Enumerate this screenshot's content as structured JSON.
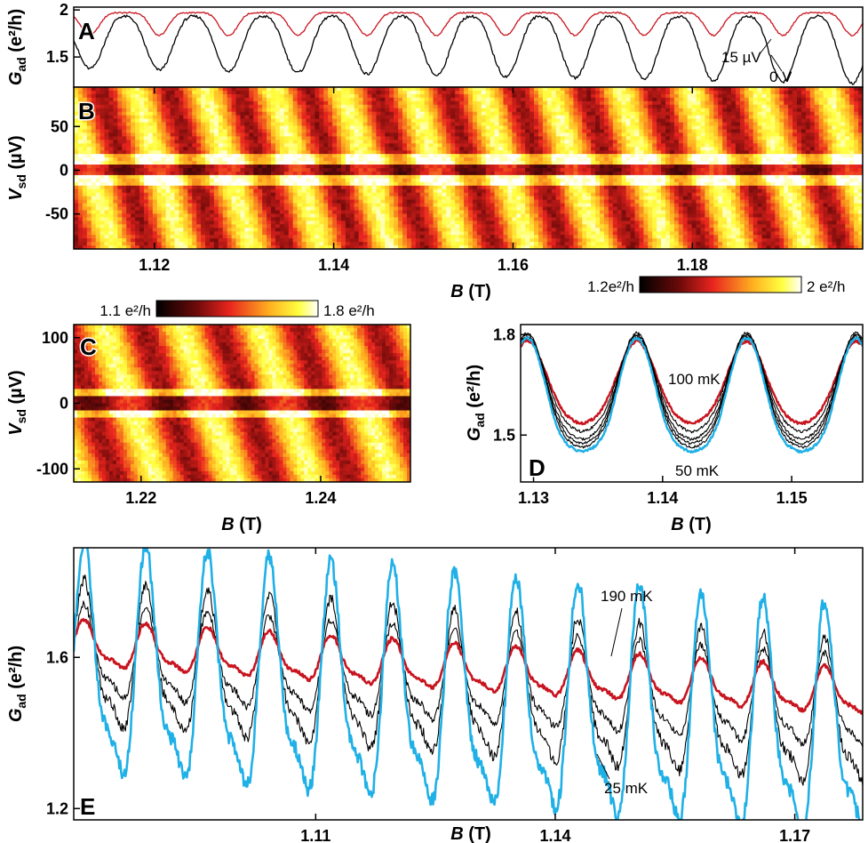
{
  "chart_data": [
    {
      "panel": "A",
      "type": "line",
      "xlim": [
        1.111,
        1.199
      ],
      "ylim": [
        1.18,
        2.03
      ],
      "ylabel": {
        "base": "G",
        "sub": "ad",
        "unit": "(e²/h)"
      },
      "yticks": [
        "1.5",
        "2"
      ],
      "ytick_values": [
        1.5,
        2.0
      ],
      "period": 0.00773,
      "phase": 1.1128,
      "series": [
        {
          "name": "15 µV",
          "color": "#c8141e",
          "low": 1.73,
          "high": 1.97
        },
        {
          "name": "0 V",
          "color": "#000000",
          "low_start": 1.38,
          "low_end": 1.22,
          "high": 1.93
        }
      ],
      "annotations": [
        "15 µV",
        "0 V"
      ]
    },
    {
      "panel": "B",
      "type": "heatmap",
      "xlim": [
        1.111,
        1.199
      ],
      "ylim": [
        -90,
        95
      ],
      "ylabel": {
        "base": "V",
        "sub": "sd",
        "unit": "(µV)"
      },
      "yticks": [
        "50",
        "0",
        "-50"
      ],
      "ytick_values": [
        50,
        0,
        -50
      ],
      "xticks": [
        "1.12",
        "1.14",
        "1.16",
        "1.18"
      ],
      "xtick_values": [
        1.12,
        1.14,
        1.16,
        1.18
      ],
      "xlabel": {
        "base": "B",
        "unit": "(T)"
      },
      "colorbar": {
        "min_label": "1.2e²/h",
        "max_label": "2 e²/h",
        "min": 1.2,
        "max": 2.0
      },
      "period": 0.00773
    },
    {
      "panel": "C",
      "type": "heatmap",
      "xlim": [
        1.2125,
        1.25
      ],
      "ylim": [
        -120,
        120
      ],
      "ylabel": {
        "base": "V",
        "sub": "sd",
        "unit": "(µV)"
      },
      "yticks": [
        "100",
        "0",
        "-100"
      ],
      "ytick_values": [
        100,
        0,
        -100
      ],
      "xticks": [
        "1.22",
        "1.24"
      ],
      "xtick_values": [
        1.22,
        1.24
      ],
      "xlabel": {
        "base": "B",
        "unit": "(T)"
      },
      "colorbar": {
        "min_label": "1.1 e²/h",
        "max_label": "1.8 e²/h",
        "min": 1.1,
        "max": 1.8
      },
      "period": 0.0087
    },
    {
      "panel": "D",
      "type": "line",
      "xlim": [
        1.129,
        1.1555
      ],
      "ylim": [
        1.36,
        1.83
      ],
      "ylabel": {
        "base": "G",
        "sub": "ad",
        "unit": "(e²/h)"
      },
      "yticks": [
        "1.8",
        "1.5"
      ],
      "ytick_values": [
        1.8,
        1.5
      ],
      "xticks": [
        "1.13",
        "1.14",
        "1.15"
      ],
      "xtick_values": [
        1.13,
        1.14,
        1.15
      ],
      "xlabel": {
        "base": "B",
        "unit": "(T)"
      },
      "peaks": [
        1.1295,
        1.138,
        1.1465,
        1.155
      ],
      "series": [
        {
          "name": "100 mK",
          "color": "#c8141e",
          "low": 1.53,
          "high": 1.78
        },
        {
          "name": "",
          "color": "#000000",
          "low": 1.5,
          "high": 1.79
        },
        {
          "name": "",
          "color": "#000000",
          "low": 1.47,
          "high": 1.795
        },
        {
          "name": "",
          "color": "#000000",
          "low": 1.45,
          "high": 1.8
        },
        {
          "name": "",
          "color": "#000000",
          "low": 1.43,
          "high": 1.805
        },
        {
          "name": "50 mK",
          "color": "#1fb0e6",
          "low": 1.41,
          "high": 1.79
        }
      ],
      "annotations": [
        "100 mK",
        "50 mK"
      ]
    },
    {
      "panel": "E",
      "type": "line",
      "xlim": [
        1.0797,
        1.1785
      ],
      "ylim": [
        1.17,
        1.89
      ],
      "ylabel": {
        "base": "G",
        "sub": "ad",
        "unit": "(e²/h)"
      },
      "yticks": [
        "1.6",
        "1.2"
      ],
      "ytick_values": [
        1.6,
        1.2
      ],
      "xticks": [
        "1.11",
        "1.14",
        "1.17"
      ],
      "xtick_values": [
        1.11,
        1.14,
        1.17
      ],
      "xlabel": {
        "base": "B",
        "unit": "(T)"
      },
      "period": 0.00773,
      "series": [
        {
          "name": "190 mK",
          "color": "#c8141e",
          "mean_start": 1.63,
          "mean_end": 1.5,
          "amp": 0.06
        },
        {
          "name": "",
          "color": "#000000",
          "mean_start": 1.6,
          "mean_end": 1.46,
          "amp": 0.12
        },
        {
          "name": "",
          "color": "#000000",
          "mean_start": 1.58,
          "mean_end": 1.42,
          "amp": 0.19
        },
        {
          "name": "25 mK",
          "color": "#1fb0e6",
          "mean_start": 1.55,
          "mean_end": 1.38,
          "amp": 0.3
        }
      ],
      "annotations": [
        "190 mK",
        "25 mK"
      ]
    }
  ]
}
